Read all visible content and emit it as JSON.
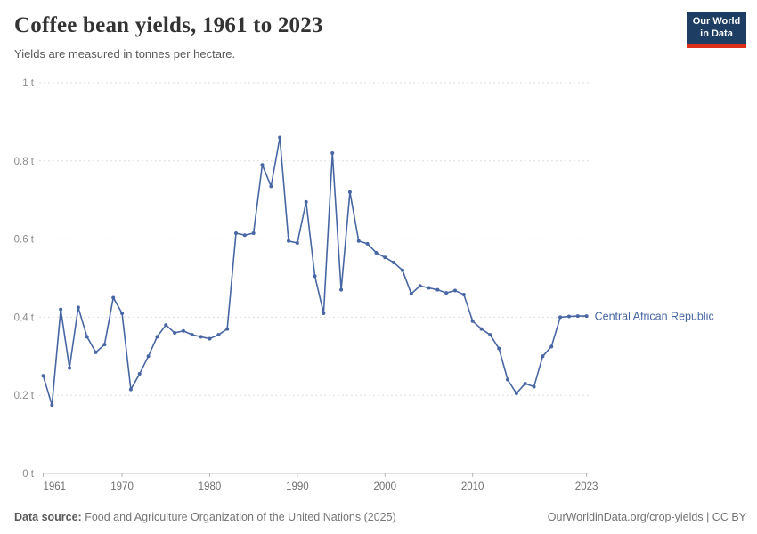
{
  "header": {
    "title": "Coffee bean yields, 1961 to 2023",
    "subtitle": "Yields are measured in tonnes per hectare.",
    "logo": {
      "line1": "Our World",
      "line2": "in Data",
      "bg_color": "#1d3d63",
      "stripe_color": "#dc2e18"
    }
  },
  "chart_data": {
    "type": "line",
    "title": "Coffee bean yields, 1961 to 2023",
    "xlabel": "",
    "ylabel": "tonnes per hectare",
    "xlim": [
      1961,
      2023
    ],
    "ylim": [
      0,
      1
    ],
    "grid": true,
    "legend_position": "right-of-line",
    "line_color": "#4766a3",
    "grid_color": "#dddddd",
    "axis_color": "#c9c9c9",
    "tick_label_color": "#7c7c7c",
    "x_ticks": [
      1961,
      1970,
      1980,
      1990,
      2000,
      2010,
      2023
    ],
    "y_ticks": [
      {
        "value": 0,
        "label": "0 t"
      },
      {
        "value": 0.2,
        "label": "0.2 t"
      },
      {
        "value": 0.4,
        "label": "0.4 t"
      },
      {
        "value": 0.6,
        "label": "0.6 t"
      },
      {
        "value": 0.8,
        "label": "0.8 t"
      },
      {
        "value": 1,
        "label": "1 t"
      }
    ],
    "series": [
      {
        "name": "Central African Republic",
        "color": "#4766a3",
        "x": [
          1961,
          1962,
          1963,
          1964,
          1965,
          1966,
          1967,
          1968,
          1969,
          1970,
          1971,
          1972,
          1973,
          1974,
          1975,
          1976,
          1977,
          1978,
          1979,
          1980,
          1981,
          1982,
          1983,
          1984,
          1985,
          1986,
          1987,
          1988,
          1989,
          1990,
          1991,
          1992,
          1993,
          1994,
          1995,
          1996,
          1997,
          1998,
          1999,
          2000,
          2001,
          2002,
          2003,
          2004,
          2005,
          2006,
          2007,
          2008,
          2009,
          2010,
          2011,
          2012,
          2013,
          2014,
          2015,
          2016,
          2017,
          2018,
          2019,
          2020,
          2021,
          2022,
          2023
        ],
        "values": [
          0.25,
          0.175,
          0.42,
          0.27,
          0.425,
          0.35,
          0.31,
          0.33,
          0.45,
          0.41,
          0.215,
          0.255,
          0.3,
          0.35,
          0.38,
          0.36,
          0.365,
          0.355,
          0.35,
          0.345,
          0.355,
          0.37,
          0.615,
          0.61,
          0.615,
          0.79,
          0.735,
          0.86,
          0.595,
          0.59,
          0.695,
          0.505,
          0.41,
          0.82,
          0.47,
          0.72,
          0.595,
          0.588,
          0.565,
          0.553,
          0.54,
          0.52,
          0.46,
          0.48,
          0.475,
          0.47,
          0.462,
          0.468,
          0.458,
          0.39,
          0.37,
          0.355,
          0.32,
          0.24,
          0.205,
          0.23,
          0.222,
          0.3,
          0.325,
          0.4,
          0.402,
          0.403,
          0.403
        ]
      }
    ]
  },
  "footer": {
    "source_label": "Data source:",
    "source_text": " Food and Agriculture Organization of the United Nations (2025)",
    "license_text": "OurWorldinData.org/crop-yields | CC BY"
  }
}
